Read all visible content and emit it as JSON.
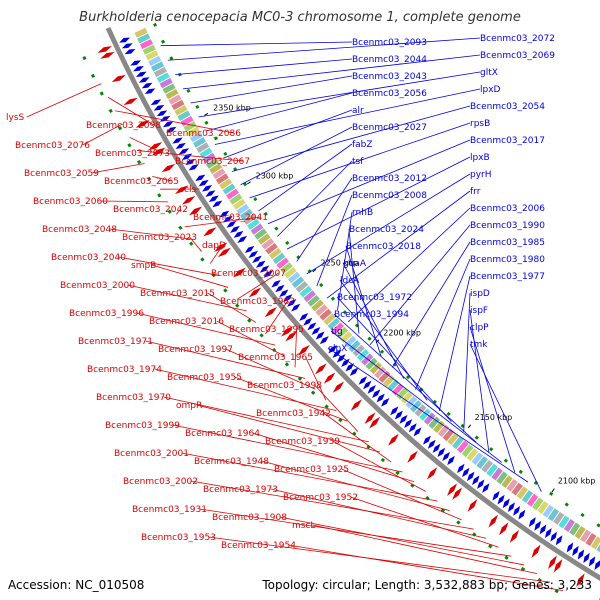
{
  "title": "Burkholderia cenocepacia MC0-3 chromosome 1, complete genome",
  "accession": "Accession: NC_010508",
  "summary": "Topology: circular; Length: 3,532,883 bp; Genes: 3,233",
  "colors": {
    "forward": "#0000dd",
    "reverse": "#dd0000",
    "backbone": "#888888",
    "tick": "#008800"
  },
  "ticks": [
    "2350 kbp",
    "2300 kbp",
    "2250 kbp",
    "2200 kbp",
    "2150 kbp",
    "2100 kbp"
  ],
  "forward_labels": [
    "Bcenmc03_2093",
    "Bcenmc03_2072",
    "Bcenmc03_2044",
    "Bcenmc03_2069",
    "Bcenmc03_2043",
    "gltX",
    "Bcenmc03_2056",
    "lpxD",
    "alr",
    "Bcenmc03_2054",
    "Bcenmc03_2027",
    "rpsB",
    "fabZ",
    "Bcenmc03_2017",
    "tsf",
    "lpxB",
    "Bcenmc03_2012",
    "pyrH",
    "Bcenmc03_2008",
    "frr",
    "rnhB",
    "Bcenmc03_2006",
    "Bcenmc03_2024",
    "Bcenmc03_1990",
    "Bcenmc03_2018",
    "Bcenmc03_1985",
    "guaA",
    "Bcenmc03_1980",
    "ldcA",
    "Bcenmc03_1977",
    "Bcenmc03_1972",
    "ispD",
    "Bcenmc03_1994",
    "ispF",
    "tig",
    "clpP",
    "clpX",
    "tmk"
  ],
  "reverse_labels": [
    "lysS",
    "Bcenmc03_2098",
    "Bcenmc03_2086",
    "Bcenmc03_2076",
    "Bcenmc03_2073",
    "Bcenmc03_2067",
    "Bcenmc03_2059",
    "Bcenmc03_2065",
    "cls",
    "Bcenmc03_2060",
    "Bcenmc03_2042",
    "Bcenmc03_2041",
    "Bcenmc03_2048",
    "Bcenmc03_2023",
    "dapD",
    "Bcenmc03_2040",
    "smpB",
    "Bcenmc03_2007",
    "Bcenmc03_2000",
    "Bcenmc03_2015",
    "Bcenmc03_1982",
    "Bcenmc03_1996",
    "Bcenmc03_2016",
    "Bcenmc03_1995",
    "Bcenmc03_1971",
    "Bcenmc03_1997",
    "Bcenmc03_1965",
    "Bcenmc03_1974",
    "Bcenmc03_1955",
    "Bcenmc03_1998",
    "Bcenmc03_1970",
    "ompR",
    "Bcenmc03_1942",
    "Bcenmc03_1999",
    "Bcenmc03_1964",
    "Bcenmc03_1939",
    "Bcenmc03_2001",
    "Bcenmc03_1948",
    "Bcenmc03_1925",
    "Bcenmc03_2002",
    "Bcenmc03_1973",
    "Bcenmc03_1952",
    "Bcenmc03_1931",
    "Bcenmc03_1908",
    "mscL",
    "Bcenmc03_1953",
    "Bcenmc03_1954"
  ]
}
